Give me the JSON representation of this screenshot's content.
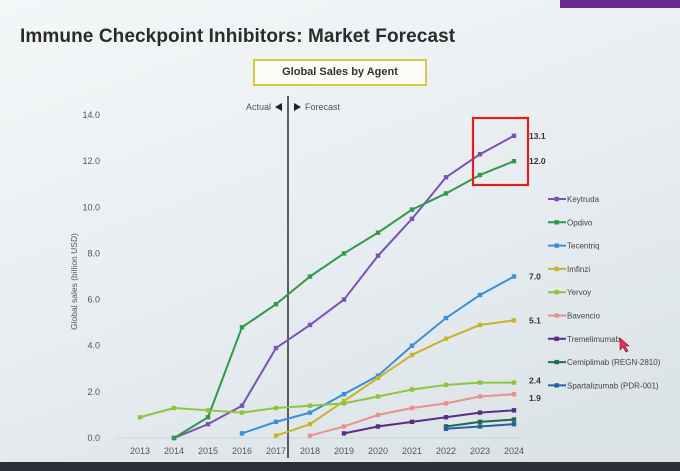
{
  "slide": {
    "title": "Immune Checkpoint Inhibitors: Market Forecast"
  },
  "chart_data": {
    "type": "line",
    "title": "Global Sales by Agent",
    "ylabel": "Global sales (billion USD)",
    "xlabel": "",
    "ylim": [
      0,
      14
    ],
    "yticks": [
      "0.0",
      "2.0",
      "4.0",
      "6.0",
      "8.0",
      "10.0",
      "12.0",
      "14.0"
    ],
    "categories": [
      "2013",
      "2014",
      "2015",
      "2016",
      "2017",
      "2018",
      "2019",
      "2020",
      "2021",
      "2022",
      "2023",
      "2024"
    ],
    "divider": {
      "left_label": "Actual",
      "right_label": "Forecast",
      "after_category": "2017"
    },
    "legend_position": "right",
    "grid": false,
    "highlight": {
      "series": [
        "Keytruda",
        "Opdivo"
      ],
      "color": "#e02020"
    },
    "series": [
      {
        "name": "Keytruda",
        "color": "#7b52b5",
        "values": [
          null,
          0.0,
          0.6,
          1.4,
          3.9,
          4.9,
          6.0,
          7.9,
          9.5,
          11.3,
          12.3,
          13.1
        ],
        "end_label": "13.1"
      },
      {
        "name": "Opdivo",
        "color": "#2f9a48",
        "values": [
          null,
          0.0,
          0.9,
          4.8,
          5.8,
          7.0,
          8.0,
          8.9,
          9.9,
          10.6,
          11.4,
          12.0
        ],
        "end_label": "12.0"
      },
      {
        "name": "Tecentriq",
        "color": "#3b8fd6",
        "values": [
          null,
          null,
          null,
          0.2,
          0.7,
          1.1,
          1.9,
          2.7,
          4.0,
          5.2,
          6.2,
          7.0
        ],
        "end_label": "7.0"
      },
      {
        "name": "Imfinzi",
        "color": "#c9b429",
        "values": [
          null,
          null,
          null,
          null,
          0.1,
          0.6,
          1.6,
          2.6,
          3.6,
          4.3,
          4.9,
          5.1
        ],
        "end_label": "5.1"
      },
      {
        "name": "Yervoy",
        "color": "#8cc63f",
        "values": [
          0.9,
          1.3,
          1.2,
          1.1,
          1.3,
          1.4,
          1.5,
          1.8,
          2.1,
          2.3,
          2.4,
          2.4
        ],
        "end_label": "2.4"
      },
      {
        "name": "Bavencio",
        "color": "#e8918d",
        "values": [
          null,
          null,
          null,
          null,
          null,
          0.1,
          0.5,
          1.0,
          1.3,
          1.5,
          1.8,
          1.9
        ],
        "end_label": "1.9"
      },
      {
        "name": "Tremelimumab",
        "color": "#5a2d82",
        "values": [
          null,
          null,
          null,
          null,
          null,
          null,
          0.2,
          0.5,
          0.7,
          0.9,
          1.1,
          1.2
        ],
        "end_label": ""
      },
      {
        "name": "Cemiplimab (REGN-2810)",
        "color": "#1f6b4a",
        "values": [
          null,
          null,
          null,
          null,
          null,
          null,
          null,
          null,
          null,
          0.5,
          0.7,
          0.8
        ],
        "end_label": ""
      },
      {
        "name": "Spartalizumab (PDR-001)",
        "color": "#2a5fa8",
        "values": [
          null,
          null,
          null,
          null,
          null,
          null,
          null,
          null,
          null,
          0.4,
          0.5,
          0.6
        ],
        "end_label": ""
      }
    ]
  }
}
